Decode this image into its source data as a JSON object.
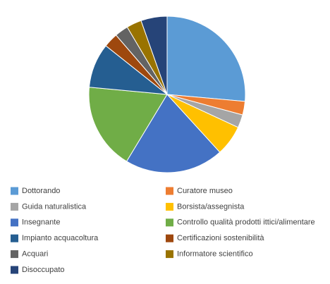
{
  "chart_data": {
    "type": "pie",
    "categories": [
      "Dottorando",
      "Curatore museo",
      "Guida naturalistica",
      "Borsista/assegnista",
      "Insegnante",
      "Controllo qualità prodotti ittici/alimentare",
      "Impianto acquacoltura",
      "Certificazioni sostenibilità",
      "Acquari",
      "Informatore scientifico",
      "Disoccupato"
    ],
    "values": [
      26.4,
      2.8,
      2.7,
      6.3,
      20.4,
      17.8,
      9.2,
      3.0,
      2.8,
      3.1,
      5.4
    ],
    "colors": [
      "#5b9bd5",
      "#ed7d31",
      "#a5a5a5",
      "#ffc000",
      "#4472c4",
      "#70ad47",
      "#255e91",
      "#9e480e",
      "#636363",
      "#997300",
      "#264478"
    ],
    "legend": "bottom"
  }
}
